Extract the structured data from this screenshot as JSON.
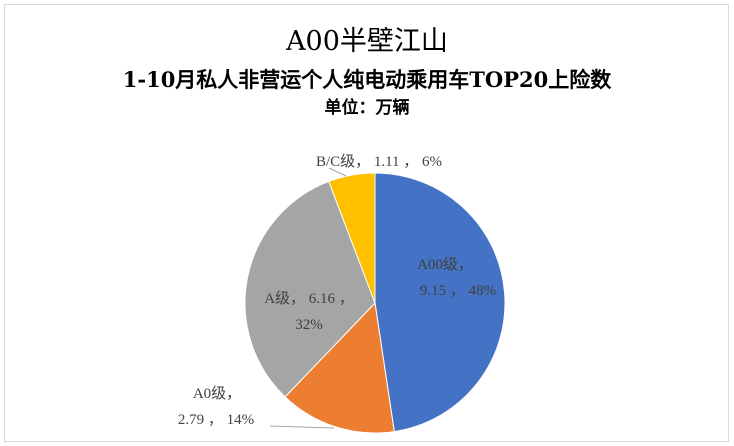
{
  "chart_data": {
    "type": "pie",
    "title": "A00半壁江山",
    "subtitle": "1-10月私人非营运个人纯电动乘用车TOP20上险数",
    "unit_label": "单位：万辆",
    "start": "top",
    "direction": "clockwise",
    "legend": "none",
    "data_label_separator": "，",
    "percent_unit": "%",
    "slices": [
      {
        "category": "A00级",
        "value": 9.15,
        "percent": 48,
        "color": "#4472C4"
      },
      {
        "category": "A0级",
        "value": 2.79,
        "percent": 14,
        "color": "#ED7D31"
      },
      {
        "category": "A级",
        "value": 6.16,
        "percent": 32,
        "color": "#A5A5A5"
      },
      {
        "category": "B/C级",
        "value": 1.11,
        "percent": 6,
        "color": "#FFC000"
      }
    ]
  }
}
